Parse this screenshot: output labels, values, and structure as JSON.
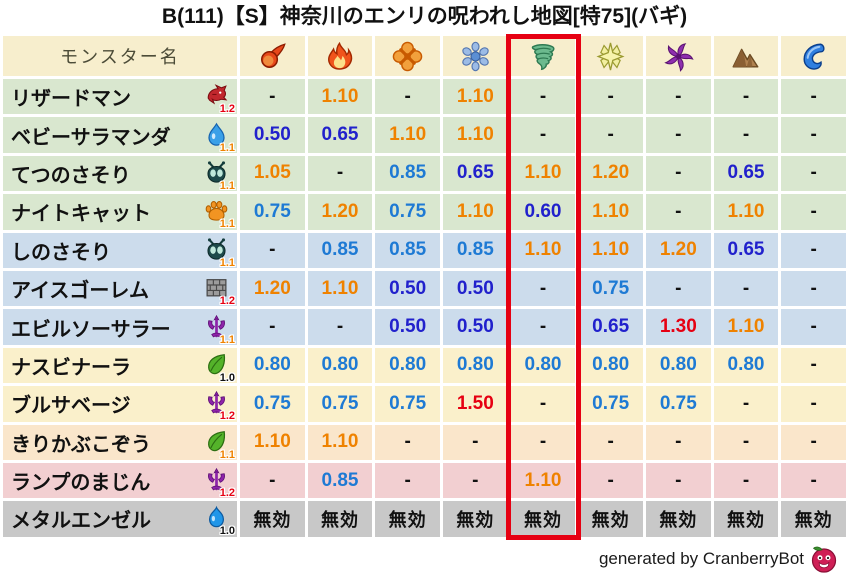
{
  "title": "B(111)【S】神奈川のエンリの呪われし地図[特75](バギ)",
  "footer": {
    "text": "generated by CranberryBot",
    "icon": "cranberry-bot-icon"
  },
  "colors": {
    "header_bg": "#f7eecd",
    "highlight_box": "#e60012",
    "value_up": "#ef8200",
    "value_up_strong": "#e60012",
    "value_down_mild": "#1e7ad4",
    "value_down_strong": "#2121cc",
    "value_neutral": "#111111"
  },
  "table": {
    "name_header": "モンスター名",
    "highlighted_column": 5,
    "element_columns": [
      "fireball-icon",
      "flame-icon",
      "burst-icon",
      "snowflake-icon",
      "tornado-icon",
      "sparkle-icon",
      "pinwheel-icon",
      "mountain-icon",
      "wave-icon"
    ],
    "rows": [
      {
        "name": "リザードマン",
        "family_icon": "dragon-icon",
        "modifier": "1.2",
        "color": "#d9e7cf",
        "values": [
          "-",
          "1.10",
          "-",
          "1.10",
          "-",
          "-",
          "-",
          "-",
          "-"
        ]
      },
      {
        "name": "ベビーサラマンダ",
        "family_icon": "waterdrop-icon",
        "modifier": "1.1",
        "color": "#d9e7cf",
        "values": [
          "0.50",
          "0.65",
          "1.10",
          "1.10",
          "-",
          "-",
          "-",
          "-",
          "-"
        ]
      },
      {
        "name": "てつのさそり",
        "family_icon": "bug-icon",
        "modifier": "1.1",
        "color": "#d9e7cf",
        "values": [
          "1.05",
          "-",
          "0.85",
          "0.65",
          "1.10",
          "1.20",
          "-",
          "0.65",
          "-"
        ]
      },
      {
        "name": "ナイトキャット",
        "family_icon": "paw-icon",
        "modifier": "1.1",
        "color": "#d9e7cf",
        "values": [
          "0.75",
          "1.20",
          "0.75",
          "1.10",
          "0.60",
          "1.10",
          "-",
          "1.10",
          "-"
        ]
      },
      {
        "name": "しのさそり",
        "family_icon": "bug-icon",
        "modifier": "1.1",
        "color": "#ccdcec",
        "values": [
          "-",
          "0.85",
          "0.85",
          "0.85",
          "1.10",
          "1.10",
          "1.20",
          "0.65",
          "-"
        ]
      },
      {
        "name": "アイスゴーレム",
        "family_icon": "brick-icon",
        "modifier": "1.2",
        "color": "#ccdcec",
        "values": [
          "1.20",
          "1.10",
          "0.50",
          "0.50",
          "-",
          "0.75",
          "-",
          "-",
          "-"
        ]
      },
      {
        "name": "エビルソーサラー",
        "family_icon": "devil-icon",
        "modifier": "1.1",
        "color": "#ccdcec",
        "values": [
          "-",
          "-",
          "0.50",
          "0.50",
          "-",
          "0.65",
          "1.30",
          "1.10",
          "-"
        ]
      },
      {
        "name": "ナスビナーラ",
        "family_icon": "leaf-icon",
        "modifier": "1.0",
        "color": "#faf0cb",
        "values": [
          "0.80",
          "0.80",
          "0.80",
          "0.80",
          "0.80",
          "0.80",
          "0.80",
          "0.80",
          "-"
        ]
      },
      {
        "name": "ブルサベージ",
        "family_icon": "devil-icon",
        "modifier": "1.2",
        "color": "#faf0cb",
        "values": [
          "0.75",
          "0.75",
          "0.75",
          "1.50",
          "-",
          "0.75",
          "0.75",
          "-",
          "-"
        ]
      },
      {
        "name": "きりかぶこぞう",
        "family_icon": "leaf-icon",
        "modifier": "1.1",
        "color": "#fae6cb",
        "values": [
          "1.10",
          "1.10",
          "-",
          "-",
          "-",
          "-",
          "-",
          "-",
          "-"
        ]
      },
      {
        "name": "ランプのまじん",
        "family_icon": "devil-icon",
        "modifier": "1.2",
        "color": "#f2cfd1",
        "values": [
          "-",
          "0.85",
          "-",
          "-",
          "1.10",
          "-",
          "-",
          "-",
          "-"
        ]
      },
      {
        "name": "メタルエンゼル",
        "family_icon": "slime-icon",
        "modifier": "1.0",
        "color": "#c8c8c8",
        "values": [
          "無効",
          "無効",
          "無効",
          "無効",
          "無効",
          "無効",
          "無効",
          "無効",
          "無効"
        ]
      }
    ]
  }
}
